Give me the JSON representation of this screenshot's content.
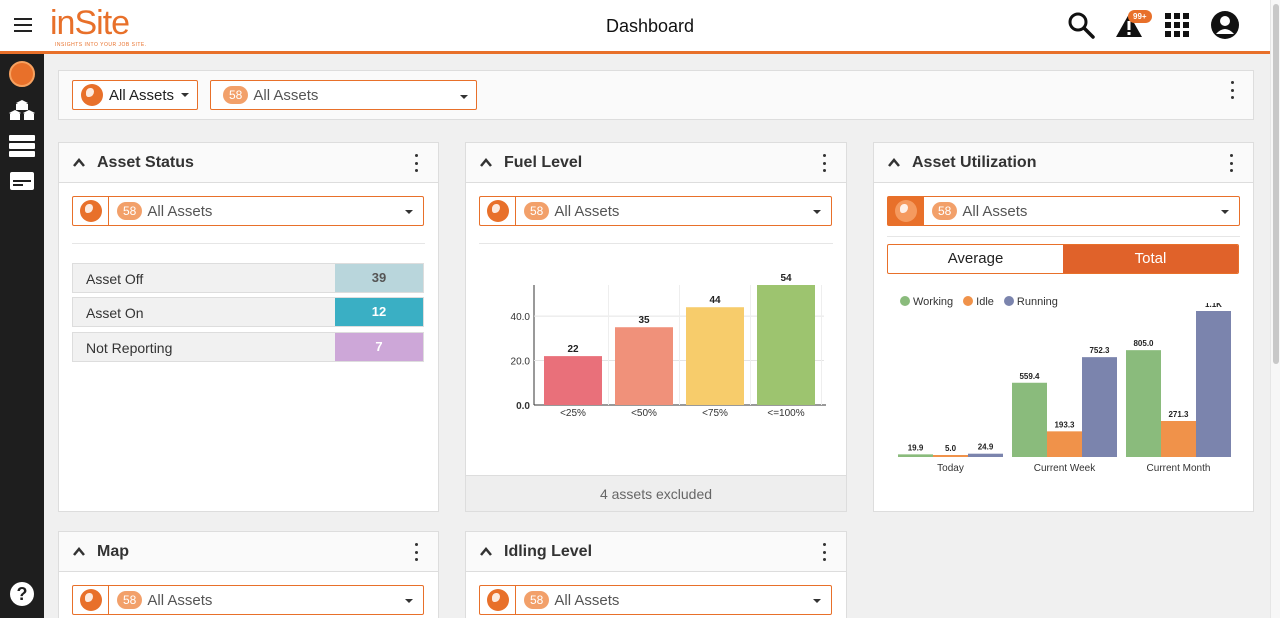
{
  "header": {
    "title": "Dashboard",
    "logo_text": "inSite",
    "logo_tagline": "INSIGHTS INTO YOUR JOB SITE.",
    "notification_badge": "99+"
  },
  "filter": {
    "group_label": "All Assets",
    "count": "58",
    "asset_label": "All Assets"
  },
  "panels": {
    "asset_status": {
      "title": "Asset Status",
      "count": "58",
      "select_label": "All Assets",
      "rows": [
        {
          "label": "Asset Off",
          "value": "39",
          "color": "#b9d6dc"
        },
        {
          "label": "Asset On",
          "value": "12",
          "color": "#3aafc4"
        },
        {
          "label": "Not Reporting",
          "value": "7",
          "color": "#cda7d8"
        }
      ]
    },
    "fuel_level": {
      "title": "Fuel Level",
      "count": "58",
      "select_label": "All Assets",
      "footer": "4 assets excluded"
    },
    "asset_utilization": {
      "title": "Asset Utilization",
      "count": "58",
      "select_label": "All Assets",
      "toggle": {
        "average": "Average",
        "total": "Total",
        "selected": "Total"
      }
    },
    "map": {
      "title": "Map",
      "count": "58",
      "select_label": "All Assets"
    },
    "idling_level": {
      "title": "Idling Level",
      "count": "58",
      "select_label": "All Assets"
    }
  },
  "chart_data": [
    {
      "type": "bar",
      "categories": [
        "<25%",
        "<50%",
        "<75%",
        "<=100%"
      ],
      "values": [
        22,
        35,
        44,
        54
      ],
      "value_labels": [
        "22",
        "35",
        "44",
        "54"
      ],
      "colors": [
        "#e9707a",
        "#f0917a",
        "#f7cc6b",
        "#9dc46f"
      ],
      "yticks": [
        "0.0",
        "20.0",
        "40.0"
      ],
      "ylim": [
        0,
        54
      ]
    },
    {
      "type": "bar",
      "categories": [
        "Today",
        "Current Week",
        "Current Month"
      ],
      "series": [
        {
          "name": "Working",
          "color": "#8abb7c",
          "values": [
            19.9,
            559.4,
            805.0
          ],
          "labels": [
            "19.9",
            "559.4",
            "805.0"
          ]
        },
        {
          "name": "Idle",
          "color": "#f0924a",
          "values": [
            5.0,
            193.3,
            271.3
          ],
          "labels": [
            "5.0",
            "193.3",
            "271.3"
          ]
        },
        {
          "name": "Running",
          "color": "#7b84ad",
          "values": [
            24.9,
            752.3,
            1100
          ],
          "labels": [
            "24.9",
            "752.3",
            "1.1K"
          ]
        }
      ],
      "legend": "top-left",
      "ylim": [
        0,
        1100
      ]
    }
  ]
}
